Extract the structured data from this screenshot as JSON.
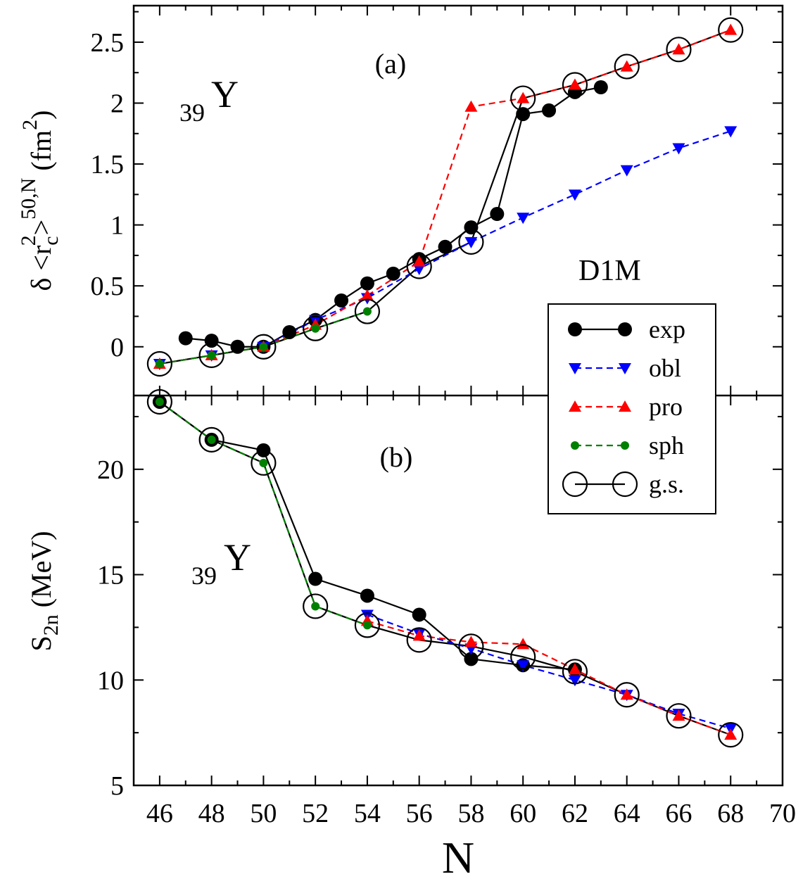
{
  "chart_data": [
    {
      "type": "line",
      "panel_label": "(a)",
      "nucleus": {
        "mass_number": "39",
        "symbol": "Y"
      },
      "model_label": "D1M",
      "ylabel": {
        "main": "δ <r",
        "sub1": "c",
        "sup1": "2",
        "bracket": ">",
        "sup2": "50,N",
        "unit": "(fm",
        "unit_sup": "2",
        "unit_end": ")"
      },
      "xlim": [
        45,
        70
      ],
      "ylim": [
        -0.4,
        2.8
      ],
      "yticks": [
        0,
        0.5,
        1,
        1.5,
        2,
        2.5
      ],
      "ytick_labels": [
        "0",
        "0.5",
        "1",
        "1.5",
        "2",
        "2.5"
      ],
      "series": [
        {
          "name": "exp",
          "color": "#000000",
          "dashed": false,
          "marker": "filled-circle",
          "x": [
            47,
            48,
            49,
            50,
            51,
            52,
            53,
            54,
            55,
            56,
            57,
            58,
            59,
            60,
            61,
            62,
            63
          ],
          "y": [
            0.07,
            0.05,
            0.0,
            0.0,
            0.12,
            0.22,
            0.38,
            0.52,
            0.6,
            0.72,
            0.82,
            0.98,
            1.09,
            1.91,
            1.94,
            2.09,
            2.13
          ]
        },
        {
          "name": "obl",
          "color": "#0000ff",
          "dashed": true,
          "marker": "triangle-down",
          "x": [
            46,
            48,
            50,
            52,
            54,
            56,
            58,
            60,
            62,
            64,
            66,
            68
          ],
          "y": [
            -0.14,
            -0.07,
            0.0,
            0.22,
            0.4,
            0.64,
            0.86,
            1.06,
            1.25,
            1.45,
            1.63,
            1.77
          ]
        },
        {
          "name": "pro",
          "color": "#ff0000",
          "dashed": true,
          "marker": "triangle-up",
          "x": [
            46,
            48,
            50,
            52,
            54,
            56,
            58,
            60,
            62,
            64,
            66,
            68
          ],
          "y": [
            -0.14,
            -0.07,
            0.0,
            0.18,
            0.42,
            0.7,
            1.97,
            2.04,
            2.15,
            2.3,
            2.44,
            2.6
          ]
        },
        {
          "name": "sph",
          "color": "#008000",
          "dashed": true,
          "marker": "small-filled-circle",
          "x": [
            46,
            48,
            50,
            52,
            54
          ],
          "y": [
            -0.14,
            -0.07,
            0.0,
            0.15,
            0.29
          ]
        },
        {
          "name": "g.s.",
          "color": "#000000",
          "dashed": false,
          "marker": "open-circle",
          "x": [
            46,
            48,
            50,
            52,
            54,
            56,
            58,
            60,
            62,
            64,
            66,
            68
          ],
          "y": [
            -0.14,
            -0.07,
            0.0,
            0.15,
            0.29,
            0.66,
            0.86,
            2.04,
            2.15,
            2.3,
            2.44,
            2.6
          ]
        }
      ]
    },
    {
      "type": "line",
      "panel_label": "(b)",
      "nucleus": {
        "mass_number": "39",
        "symbol": "Y"
      },
      "ylabel": {
        "main": "S",
        "sub": "2n",
        "unit": "(MeV)"
      },
      "xlabel": "N",
      "xlim": [
        45,
        70
      ],
      "ylim": [
        5,
        23.5
      ],
      "xticks": [
        46,
        48,
        50,
        52,
        54,
        56,
        58,
        60,
        62,
        64,
        66,
        68,
        70
      ],
      "xtick_labels": [
        "46",
        "48",
        "50",
        "52",
        "54",
        "56",
        "58",
        "60",
        "62",
        "64",
        "66",
        "68",
        "70"
      ],
      "yticks": [
        5,
        10,
        15,
        20
      ],
      "ytick_labels": [
        "5",
        "10",
        "15",
        "20"
      ],
      "series": [
        {
          "name": "exp",
          "color": "#000000",
          "dashed": false,
          "marker": "filled-circle",
          "x": [
            46,
            48,
            50,
            52,
            54,
            56,
            58,
            60,
            62
          ],
          "y": [
            23.2,
            21.4,
            20.9,
            14.8,
            14.0,
            13.1,
            11.0,
            10.7,
            10.5
          ]
        },
        {
          "name": "obl",
          "color": "#0000ff",
          "dashed": true,
          "marker": "triangle-down",
          "x": [
            54,
            56,
            58,
            60,
            62,
            64,
            66,
            68
          ],
          "y": [
            13.1,
            12.2,
            11.5,
            10.7,
            10.0,
            9.3,
            8.4,
            7.7
          ]
        },
        {
          "name": "pro",
          "color": "#ff0000",
          "dashed": true,
          "marker": "triangle-up",
          "x": [
            54,
            56,
            58,
            60,
            62,
            64,
            66,
            68
          ],
          "y": [
            12.8,
            12.1,
            11.8,
            11.7,
            10.5,
            9.3,
            8.3,
            7.4
          ]
        },
        {
          "name": "sph",
          "color": "#008000",
          "dashed": true,
          "marker": "small-filled-circle",
          "x": [
            46,
            48,
            50,
            52,
            54
          ],
          "y": [
            23.2,
            21.4,
            20.3,
            13.5,
            12.6
          ]
        },
        {
          "name": "g.s.",
          "color": "#000000",
          "dashed": false,
          "marker": "open-circle",
          "x": [
            46,
            48,
            50,
            52,
            54,
            56,
            58,
            60,
            62,
            64,
            66,
            68
          ],
          "y": [
            23.2,
            21.4,
            20.3,
            13.5,
            12.6,
            11.9,
            11.6,
            11.1,
            10.4,
            9.3,
            8.3,
            7.4
          ]
        }
      ]
    }
  ],
  "legend": {
    "placement": "right, spanning both panels",
    "entries": [
      "exp",
      "obl",
      "pro",
      "sph",
      "g.s."
    ]
  }
}
